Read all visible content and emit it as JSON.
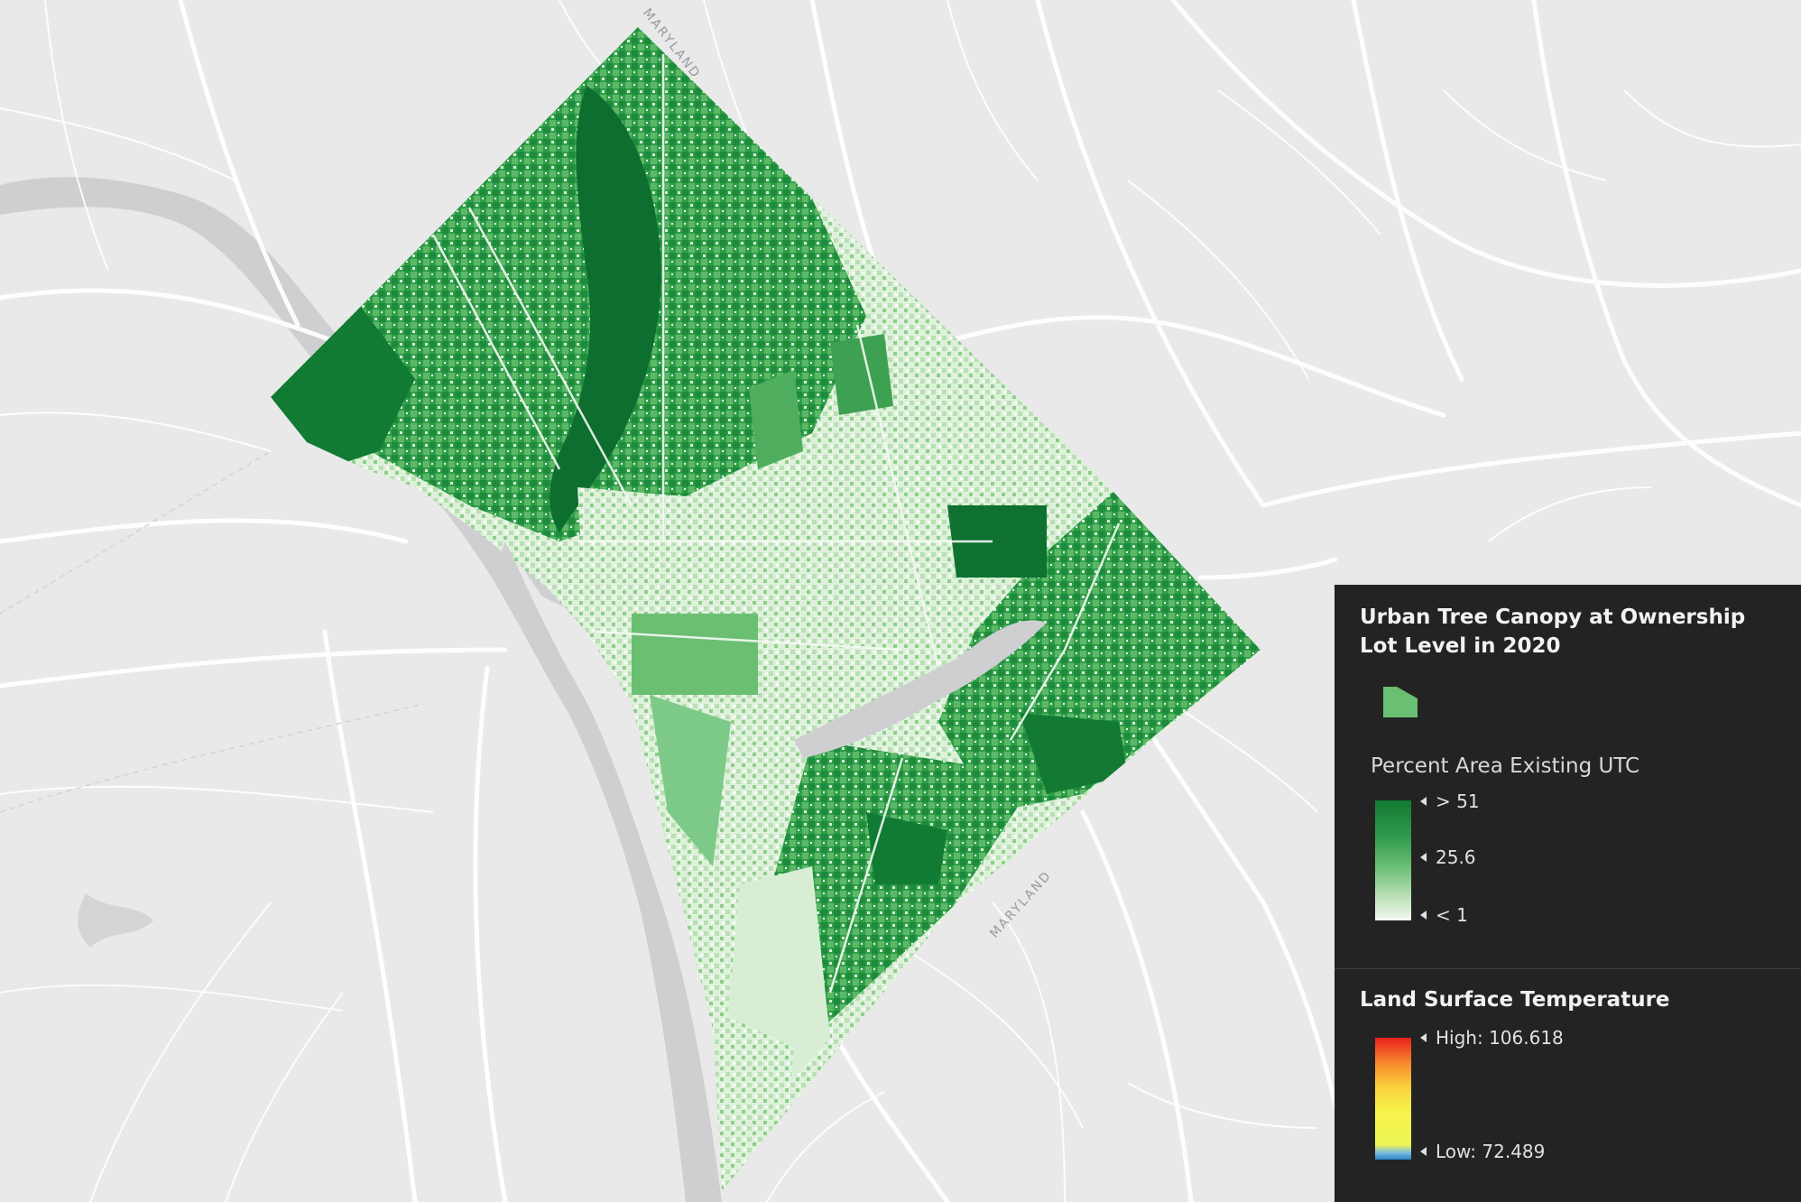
{
  "map": {
    "labels": [
      {
        "text": "MARYLAND",
        "rotate": 52
      },
      {
        "text": "MARYLAND",
        "rotate": -48
      }
    ]
  },
  "legend": {
    "layer1": {
      "title": "Urban Tree Canopy at Ownership Lot Level in 2020",
      "symbol_color": "#6abf73",
      "field": "Percent Area Existing UTC",
      "ticks": [
        "> 51",
        "25.6",
        "< 1"
      ],
      "ramp_colors": [
        "#137a33",
        "#5fb86a",
        "#f3f9f1"
      ]
    },
    "layer2": {
      "title": "Land Surface Temperature",
      "ticks": [
        "High: 106.618",
        "Low: 72.489"
      ],
      "ramp_colors": [
        "#e8201e",
        "#f98e2e",
        "#f7f34a",
        "#ecf455",
        "#2b83c9"
      ]
    }
  }
}
